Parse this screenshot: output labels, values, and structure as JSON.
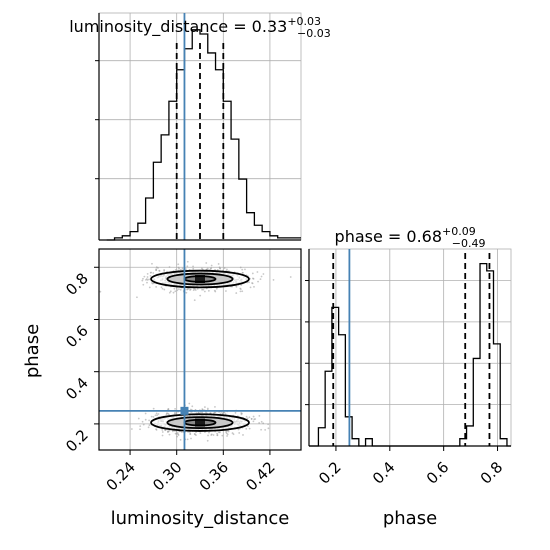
{
  "chart_data": [
    {
      "type": "histogram",
      "panel": "luminosity_distance-marginal",
      "title": {
        "text": "luminosity_distance = 0.33",
        "sup": "+0.03",
        "sub": "−0.03"
      },
      "bins": [
        {
          "x0": 0.21,
          "x1": 0.22,
          "y": 0.0
        },
        {
          "x0": 0.22,
          "x1": 0.23,
          "y": 0.01
        },
        {
          "x0": 0.23,
          "x1": 0.24,
          "y": 0.02
        },
        {
          "x0": 0.24,
          "x1": 0.25,
          "y": 0.04
        },
        {
          "x0": 0.25,
          "x1": 0.26,
          "y": 0.08
        },
        {
          "x0": 0.26,
          "x1": 0.27,
          "y": 0.2
        },
        {
          "x0": 0.27,
          "x1": 0.28,
          "y": 0.37
        },
        {
          "x0": 0.28,
          "x1": 0.29,
          "y": 0.5
        },
        {
          "x0": 0.29,
          "x1": 0.3,
          "y": 0.66
        },
        {
          "x0": 0.3,
          "x1": 0.31,
          "y": 0.81
        },
        {
          "x0": 0.31,
          "x1": 0.32,
          "y": 0.91
        },
        {
          "x0": 0.32,
          "x1": 0.33,
          "y": 1.0
        },
        {
          "x0": 0.33,
          "x1": 0.34,
          "y": 0.98
        },
        {
          "x0": 0.34,
          "x1": 0.35,
          "y": 0.89
        },
        {
          "x0": 0.35,
          "x1": 0.36,
          "y": 0.81
        },
        {
          "x0": 0.36,
          "x1": 0.37,
          "y": 0.66
        },
        {
          "x0": 0.37,
          "x1": 0.38,
          "y": 0.48
        },
        {
          "x0": 0.38,
          "x1": 0.39,
          "y": 0.29
        },
        {
          "x0": 0.39,
          "x1": 0.4,
          "y": 0.13
        },
        {
          "x0": 0.4,
          "x1": 0.41,
          "y": 0.07
        },
        {
          "x0": 0.41,
          "x1": 0.42,
          "y": 0.04
        },
        {
          "x0": 0.42,
          "x1": 0.43,
          "y": 0.02
        },
        {
          "x0": 0.43,
          "x1": 0.46,
          "y": 0.01
        }
      ],
      "quantiles": [
        0.3,
        0.33,
        0.36
      ],
      "truth": 0.31,
      "xlim": [
        0.2,
        0.46
      ],
      "ylim": [
        0,
        1.08
      ],
      "grid": true
    },
    {
      "type": "histogram",
      "panel": "phase-marginal",
      "title": {
        "text": "phase = 0.68",
        "sup": "+0.09",
        "sub": "−0.49"
      },
      "bins": [
        {
          "x0": 0.1,
          "x1": 0.135,
          "y": 0.0
        },
        {
          "x0": 0.135,
          "x1": 0.16,
          "y": 0.1
        },
        {
          "x0": 0.16,
          "x1": 0.185,
          "y": 0.41
        },
        {
          "x0": 0.185,
          "x1": 0.21,
          "y": 0.76
        },
        {
          "x0": 0.21,
          "x1": 0.235,
          "y": 0.61
        },
        {
          "x0": 0.235,
          "x1": 0.26,
          "y": 0.16
        },
        {
          "x0": 0.26,
          "x1": 0.285,
          "y": 0.04
        },
        {
          "x0": 0.285,
          "x1": 0.31,
          "y": 0.0
        },
        {
          "x0": 0.31,
          "x1": 0.335,
          "y": 0.04
        },
        {
          "x0": 0.335,
          "x1": 0.66,
          "y": 0.0
        },
        {
          "x0": 0.66,
          "x1": 0.685,
          "y": 0.04
        },
        {
          "x0": 0.685,
          "x1": 0.71,
          "y": 0.11
        },
        {
          "x0": 0.71,
          "x1": 0.735,
          "y": 0.48
        },
        {
          "x0": 0.735,
          "x1": 0.76,
          "y": 1.0
        },
        {
          "x0": 0.76,
          "x1": 0.785,
          "y": 0.96
        },
        {
          "x0": 0.785,
          "x1": 0.81,
          "y": 0.56
        },
        {
          "x0": 0.81,
          "x1": 0.835,
          "y": 0.04
        },
        {
          "x0": 0.835,
          "x1": 0.85,
          "y": 0.0
        }
      ],
      "quantiles": [
        0.19,
        0.68,
        0.77
      ],
      "truth": 0.25,
      "xlim": [
        0.1,
        0.85
      ],
      "xticks": [
        0.2,
        0.4,
        0.6,
        0.8
      ],
      "xticklabels": [
        "0.2",
        "0.4",
        "0.6",
        "0.8"
      ],
      "xlabel": "phase",
      "ylim": [
        0,
        1.08
      ],
      "grid": true
    },
    {
      "type": "scatter",
      "panel": "luminosity_distance-vs-phase",
      "xlabel": "luminosity_distance",
      "ylabel": "phase",
      "xlim": [
        0.2,
        0.46
      ],
      "ylim": [
        0.1,
        0.87
      ],
      "xticks": [
        0.24,
        0.3,
        0.36,
        0.42
      ],
      "xticklabels": [
        "0.24",
        "0.30",
        "0.36",
        "0.42"
      ],
      "yticks": [
        0.2,
        0.4,
        0.6,
        0.8
      ],
      "yticklabels": [
        "0.2",
        "0.4",
        "0.6",
        "0.8"
      ],
      "clusters": [
        {
          "center": [
            0.33,
            0.755
          ],
          "spread": [
            0.03,
            0.02
          ]
        },
        {
          "center": [
            0.33,
            0.205
          ],
          "spread": [
            0.03,
            0.022
          ]
        }
      ],
      "contour_levels": [
        {
          "rx": 0.063,
          "ry": 0.032
        },
        {
          "rx": 0.042,
          "ry": 0.021
        },
        {
          "rx": 0.02,
          "ry": 0.011
        }
      ],
      "truth": {
        "x": 0.31,
        "y": 0.25
      },
      "grid": true
    }
  ],
  "colors": {
    "truth": "#4682b4",
    "line": "#000000",
    "grid": "#b0b0b0",
    "points": "#9a9a9a",
    "density_light": "#c8c8c8",
    "density_mid": "#8a8a8a",
    "density_dark": "#1a1a1a"
  }
}
